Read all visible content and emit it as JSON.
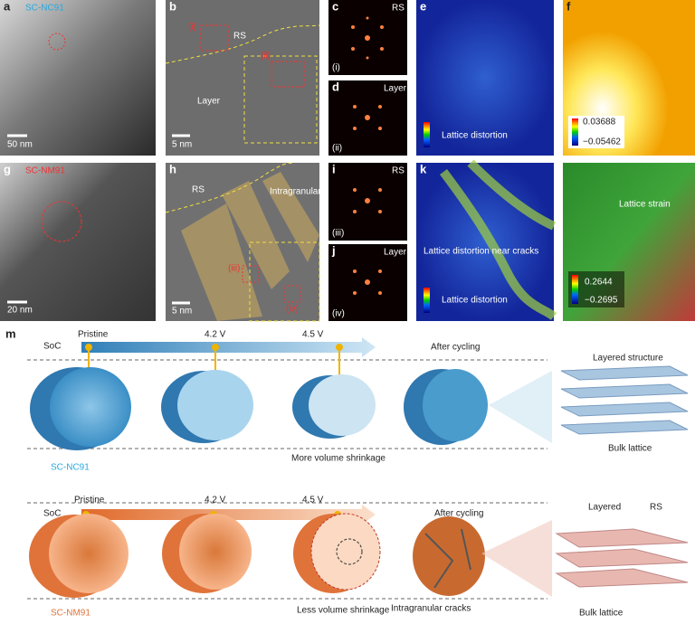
{
  "panels": [
    {
      "label": "a",
      "sample": "SC-NC91",
      "scale_bar": "50 nm"
    },
    {
      "label": "b",
      "phase_top": "RS",
      "phase_bottom": "Layer",
      "regions": [
        "(i)",
        "(ii)"
      ],
      "scale_bar": "5 nm"
    },
    {
      "label": "c",
      "phase": "RS",
      "region": "(i)"
    },
    {
      "label": "d",
      "phase": "Layer",
      "region": "(ii)"
    },
    {
      "label": "e",
      "colorbar_label": "Lattice distortion"
    },
    {
      "label": "f",
      "colorbar_max": "0.03688",
      "colorbar_min": "−0.05462"
    },
    {
      "label": "g",
      "sample": "SC-NM91",
      "scale_bar": "20 nm"
    },
    {
      "label": "h",
      "phase_top": "RS",
      "annotation": "Intragranular cracks",
      "regions": [
        "(iii)",
        "(iv)"
      ],
      "scale_bar": "5 nm"
    },
    {
      "label": "i",
      "phase": "RS",
      "region": "(iii)"
    },
    {
      "label": "j",
      "phase": "Layer",
      "region": "(iv)"
    },
    {
      "label": "k",
      "annotation": "Lattice distortion near cracks",
      "colorbar_label": "Lattice distortion"
    },
    {
      "annotation": "Lattice strain",
      "colorbar_max": "0.2644",
      "colorbar_min": "−0.2695"
    }
  ],
  "schematic": {
    "label": "m",
    "rows": [
      {
        "axis": "SoC",
        "states": [
          "Pristine",
          "4.2 V",
          "4.5 V",
          "After cycling"
        ],
        "sample": "SC-NC91",
        "shrinkage": "More volume shrinkage",
        "structure_labels": [
          "Layered structure",
          "Bulk lattice"
        ]
      },
      {
        "axis": "SoC",
        "states": [
          "Pristine",
          "4.2 V",
          "4.5 V",
          "After cycling"
        ],
        "sample": "SC-NM91",
        "shrinkage": "Less volume shrinkage",
        "structure_labels": [
          "Layered",
          "RS",
          "Bulk lattice"
        ],
        "cracks": "Intragranular cracks"
      }
    ]
  }
}
